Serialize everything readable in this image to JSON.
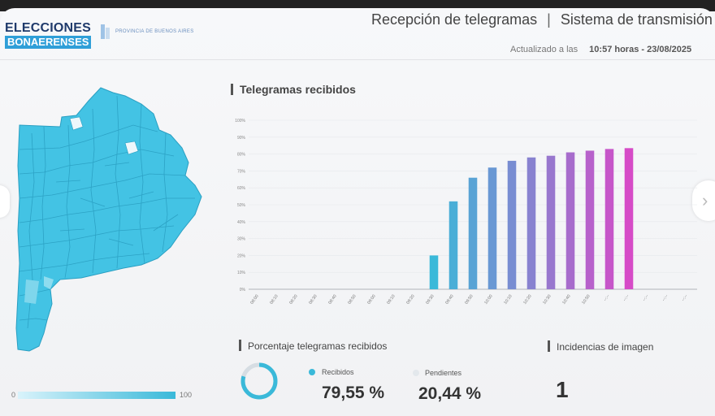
{
  "header": {
    "logo_line1": "ELECCIONES",
    "logo_line2": "BONAERENSES",
    "sub_logo": "PROVINCIA DE BUENOS AIRES",
    "title_left": "Recepción de telegramas",
    "separator": "|",
    "title_right": "Sistema de transmisión",
    "updated_label": "Actualizado a las",
    "updated_time": "10:57 horas - 23/08/2025"
  },
  "map": {
    "legend_min": "0",
    "legend_max": "100",
    "fill_color": "#43c3e4",
    "stroke_color": "#2a9fc2"
  },
  "chart": {
    "title": "Telegramas recibidos"
  },
  "chart_data": {
    "type": "bar",
    "title": "Telegramas recibidos",
    "xlabel": "",
    "ylabel": "",
    "ylim": [
      0,
      100
    ],
    "y_ticks": [
      "0%",
      "10%",
      "20%",
      "30%",
      "40%",
      "50%",
      "60%",
      "70%",
      "80%",
      "90%",
      "100%"
    ],
    "categories": [
      "08:00",
      "08:10",
      "08:20",
      "08:30",
      "08:40",
      "08:50",
      "09:00",
      "09:10",
      "09:20",
      "09:30",
      "09:40",
      "09:50",
      "10:00",
      "10:10",
      "10:20",
      "10:30",
      "10:40",
      "10:50",
      "--:--",
      "--:--",
      "--:--",
      "--:--",
      "--:--"
    ],
    "values": [
      0,
      0,
      0,
      0,
      0,
      0,
      0,
      0,
      0,
      20,
      52,
      66,
      72,
      76,
      78,
      79,
      81,
      82,
      83,
      83.5,
      null,
      null,
      null
    ],
    "colors": [
      "#3ab9d9",
      "#d64bc7"
    ],
    "grid": true
  },
  "summary": {
    "pct_title": "Porcentaje telegramas recibidos",
    "received_label": "Recibidos",
    "received_value": "79,55 %",
    "received_fraction": 0.7955,
    "pending_label": "Pendientes",
    "pending_value": "20,44 %",
    "received_color": "#3ab9d9",
    "pending_color": "#d6dde3",
    "incidents_title": "Incidencias de imagen",
    "incidents_value": "1"
  }
}
